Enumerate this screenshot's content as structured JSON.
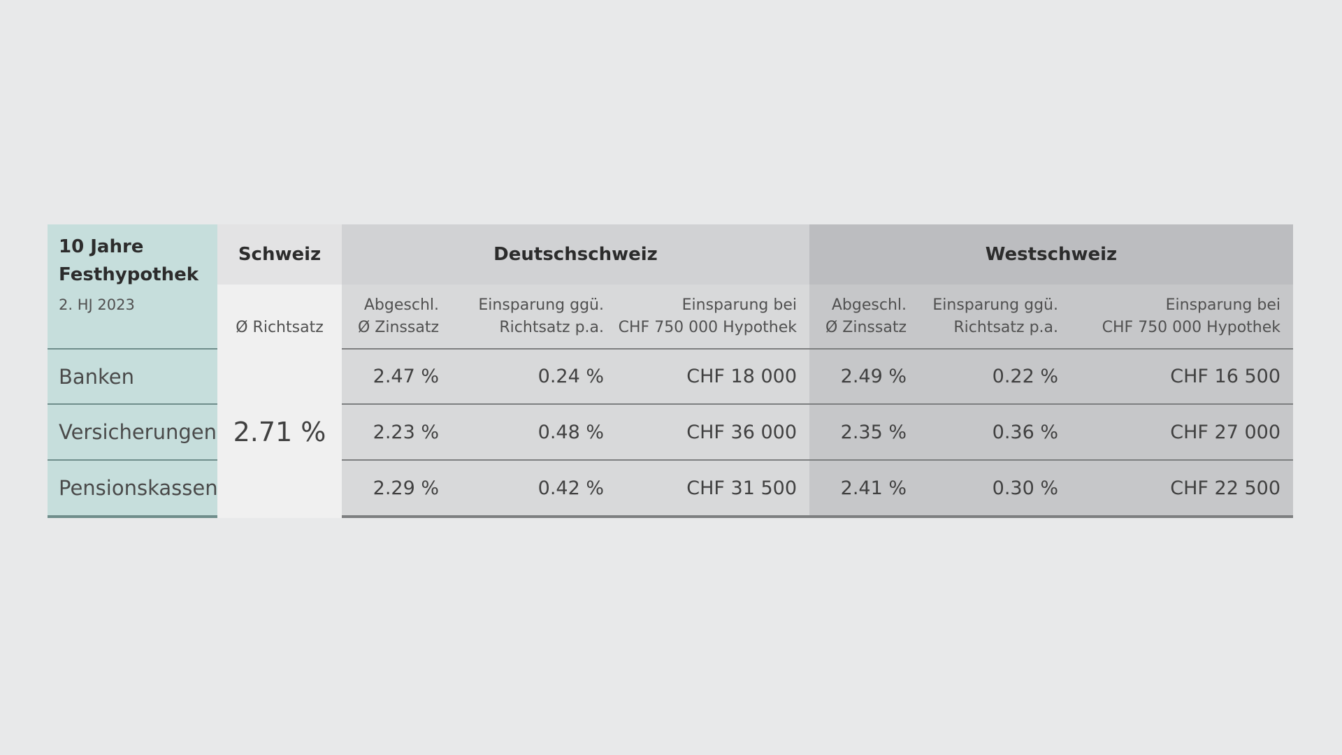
{
  "table": {
    "title": "10 Jahre Festhypothek",
    "subtitle": "2. HJ 2023",
    "groups": {
      "schweiz": "Schweiz",
      "deutschschweiz": "Deutschschweiz",
      "westschweiz": "Westschweiz"
    },
    "headers": {
      "richtsatz": "Ø Richtsatz",
      "zinssatz": "Abgeschl.\nØ Zinssatz",
      "einsparung_pa": "Einsparung ggü.\nRichtsatz p.a.",
      "einsparung_chf": "Einsparung bei\nCHF 750 000 Hypothek"
    },
    "richtsatz_value": "2.71 %",
    "rows": [
      {
        "label": "Banken",
        "de": [
          "2.47 %",
          "0.24 %",
          "CHF 18 000"
        ],
        "we": [
          "2.49 %",
          "0.22 %",
          "CHF 16 500"
        ]
      },
      {
        "label": "Versicherungen",
        "de": [
          "2.23 %",
          "0.48 %",
          "CHF 36 000"
        ],
        "we": [
          "2.35 %",
          "0.36 %",
          "CHF 27 000"
        ]
      },
      {
        "label": "Pensionskassen",
        "de": [
          "2.29 %",
          "0.42 %",
          "CHF 31 500"
        ],
        "we": [
          "2.41 %",
          "0.30 %",
          "CHF 22 500"
        ]
      }
    ]
  }
}
